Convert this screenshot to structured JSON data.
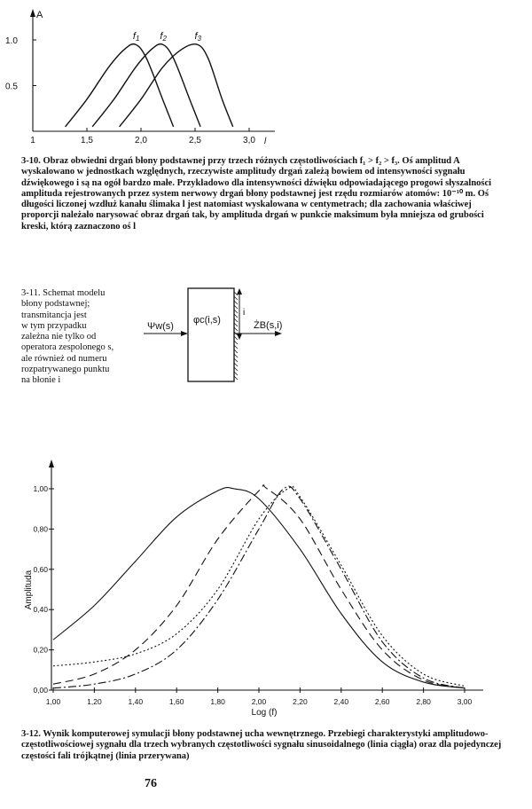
{
  "figure_1": {
    "axis_y_label": "A",
    "y_ticks": [
      "1.0",
      "0.5"
    ],
    "x_ticks": [
      "1",
      "1,5",
      "2,0",
      "2,5",
      "3,0"
    ],
    "x_label": "l",
    "curve_labels": [
      "f",
      "f",
      "f"
    ],
    "curve_subscripts": [
      "1",
      "2",
      "3"
    ],
    "caption_number": "3-10.",
    "caption_text": "Obraz obwiedni drgań błony podstawnej przy trzech różnych częstotliwościach f₁ > f₂ > f₃. Oś amplitud A wyskalowano w jednostkach względnych, rzeczywiste amplitudy drgań zależą bowiem od intensywności sygnału dźwiękowego i są na ogół bardzo małe. Przykładowo dla intensywności dźwięku odpowiadającego progowi słyszalności amplituda rejestrowanych przez system nerwowy drgań błony podstawnej jest rzędu rozmiarów atomów: 10⁻¹⁰ m. Oś długości liczonej wzdłuż kanału ślimaka l jest natomiast wyskalowana w centymetrach; dla zachowania właściwej proporcji należało narysować obraz drgań tak, by amplituda drgań w punkcie maksimum była mniejsza od grubości kreski, którą zaznaczono oś l"
  },
  "figure_2": {
    "caption_number": "3-11.",
    "caption_lines": [
      "Schemat modelu",
      "błony podstawnej;",
      "transmitancja jest",
      "w tym przypadku",
      "zależna nie tylko od",
      "operatora zespolonego s,",
      "ale również od numeru",
      "rozpatrywanego punktu",
      "na błonie i"
    ],
    "input_label": "Ψw(s)",
    "block_label": "φc(i,s)",
    "output_label": "ŻB(s,i)",
    "side_label": "i"
  },
  "figure_3": {
    "y_label": "Amplituda",
    "x_label": "Log (f)",
    "y_ticks": [
      "0,00",
      "0,20",
      "0,40",
      "0,60",
      "0,80",
      "1,00"
    ],
    "x_ticks": [
      "1,00",
      "1,20",
      "1,40",
      "1,60",
      "1,80",
      "2,00",
      "2,20",
      "2,40",
      "2,60",
      "2,80",
      "3,00"
    ],
    "caption_number": "3-12.",
    "caption_text": "Wynik komputerowej symulacji błony podstawnej ucha wewnętrznego. Przebiegi charakterystyki amplitudowo-częstotliwościowej sygnału dla trzech wybranych częstotliwości sygnału sinusoidalnego (linia ciągła) oraz dla pojedynczej częstości fali trójkątnej (linia przerywana)"
  },
  "page_number": "76",
  "chart_data": [
    {
      "type": "line",
      "xlabel": "l",
      "ylabel": "A",
      "xlim": [
        1,
        3.2
      ],
      "ylim": [
        0,
        1.1
      ],
      "series": [
        {
          "name": "f1",
          "x": [
            1.3,
            1.5,
            1.7,
            1.85,
            1.95,
            2.05,
            2.2,
            2.3
          ],
          "y": [
            0.05,
            0.35,
            0.7,
            0.9,
            0.95,
            0.8,
            0.35,
            0.05
          ]
        },
        {
          "name": "f2",
          "x": [
            1.55,
            1.75,
            1.95,
            2.1,
            2.2,
            2.3,
            2.45,
            2.55
          ],
          "y": [
            0.05,
            0.35,
            0.7,
            0.9,
            0.95,
            0.8,
            0.35,
            0.05
          ]
        },
        {
          "name": "f3",
          "x": [
            1.8,
            2.0,
            2.2,
            2.38,
            2.52,
            2.62,
            2.75,
            2.85
          ],
          "y": [
            0.05,
            0.35,
            0.7,
            0.9,
            0.95,
            0.8,
            0.35,
            0.05
          ]
        }
      ]
    },
    {
      "type": "line",
      "xlabel": "Log (f)",
      "ylabel": "Amplituda",
      "xlim": [
        1.0,
        3.0
      ],
      "ylim": [
        0,
        1.1
      ],
      "series": [
        {
          "name": "solid",
          "x": [
            1.0,
            1.2,
            1.4,
            1.6,
            1.8,
            1.88,
            2.0,
            2.2,
            2.4,
            2.6,
            2.8,
            3.0
          ],
          "y": [
            0.25,
            0.42,
            0.64,
            0.86,
            0.99,
            1.0,
            0.95,
            0.7,
            0.38,
            0.14,
            0.04,
            0.01
          ]
        },
        {
          "name": "dashed",
          "x": [
            1.0,
            1.2,
            1.4,
            1.6,
            1.8,
            2.0,
            2.04,
            2.2,
            2.4,
            2.6,
            2.8,
            3.0
          ],
          "y": [
            0.03,
            0.08,
            0.2,
            0.42,
            0.75,
            0.99,
            1.0,
            0.85,
            0.5,
            0.2,
            0.05,
            0.01
          ]
        },
        {
          "name": "dash-dot",
          "x": [
            1.0,
            1.2,
            1.4,
            1.6,
            1.8,
            2.0,
            2.12,
            2.2,
            2.4,
            2.6,
            2.8,
            3.0
          ],
          "y": [
            0.01,
            0.03,
            0.08,
            0.2,
            0.45,
            0.8,
            1.0,
            0.95,
            0.6,
            0.24,
            0.06,
            0.01
          ]
        },
        {
          "name": "dotted",
          "x": [
            1.0,
            1.2,
            1.4,
            1.6,
            1.8,
            2.0,
            2.14,
            2.2,
            2.4,
            2.6,
            2.8,
            3.0
          ],
          "y": [
            0.12,
            0.14,
            0.18,
            0.28,
            0.5,
            0.85,
            1.0,
            0.96,
            0.62,
            0.27,
            0.08,
            0.02
          ]
        }
      ]
    }
  ]
}
